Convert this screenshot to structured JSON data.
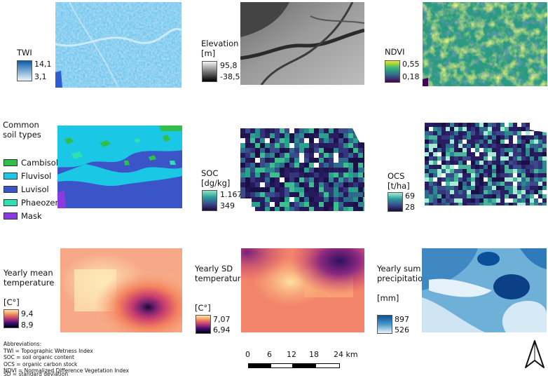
{
  "colors": {
    "cambisol": "#2fbf4a",
    "fluvisol": "#1ac8e6",
    "luvisol": "#3b55c8",
    "phaeozem": "#2fe0b0",
    "mask": "#8a3be0"
  },
  "panels": {
    "twi": {
      "title": "TWI",
      "max": "14,1",
      "min": "3,1"
    },
    "elevation": {
      "title_line1": "Elevation",
      "title_line2": "[m]",
      "max": "95,8",
      "min": "-38,5"
    },
    "ndvi": {
      "title": "NDVI",
      "max": "0,55",
      "min": "0,18"
    },
    "soil": {
      "title": "Common soil types",
      "legend": [
        {
          "label": "Cambisol",
          "color_key": "cambisol"
        },
        {
          "label": "Fluvisol",
          "color_key": "fluvisol"
        },
        {
          "label": "Luvisol",
          "color_key": "luvisol"
        },
        {
          "label": "Phaeozem",
          "color_key": "phaeozem"
        },
        {
          "label": "Mask",
          "color_key": "mask"
        }
      ]
    },
    "soc": {
      "title_line1": "SOC",
      "title_line2": "[dg/kg]",
      "max": "1.167",
      "min": "349"
    },
    "ocs": {
      "title_line1": "OCS",
      "title_line2": "[t/ha]",
      "max": "69",
      "min": "28"
    },
    "temp_mean": {
      "title": "Yearly mean temperature",
      "unit": "[C°]",
      "max": "9,4",
      "min": "8,9"
    },
    "temp_sd": {
      "title": "Yearly SD temperature",
      "unit": "[C°]",
      "max": "7,07",
      "min": "6,94"
    },
    "precip": {
      "title": "Yearly sum precipitation",
      "unit": "[mm]",
      "max": "897",
      "min": "526"
    }
  },
  "abbreviations": {
    "heading": "Abbreviations:",
    "items": [
      "TWI = Topographic Wetness Index",
      "SOC = soil organic content",
      "OCS = organic carbon stock",
      "NDVI = Normalized Difference Vegetation Index",
      "SD = standard deviation"
    ]
  },
  "scale_bar": {
    "ticks": [
      "0",
      "6",
      "12",
      "18",
      "24 km"
    ]
  },
  "north_arrow": {
    "icon": "north-arrow-icon"
  }
}
